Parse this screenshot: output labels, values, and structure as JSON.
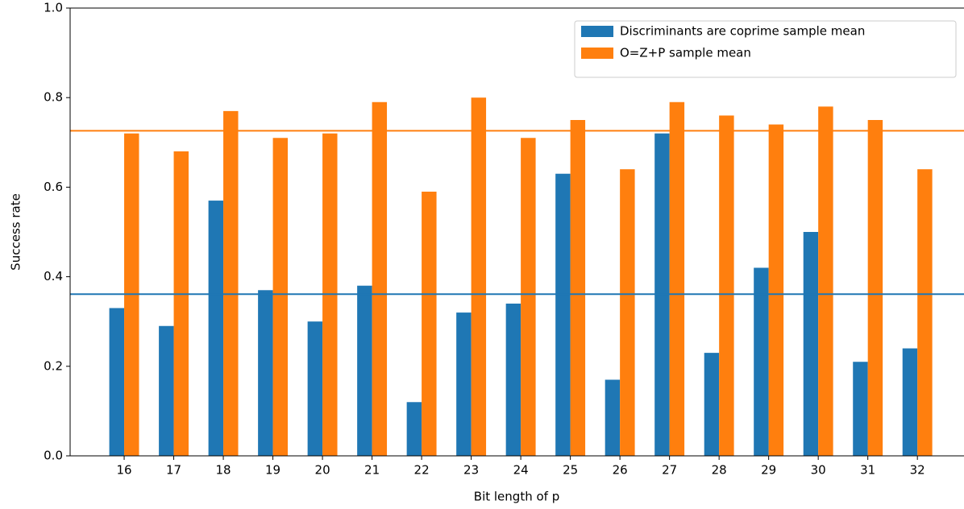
{
  "chart_data": {
    "type": "bar",
    "xlabel": "Bit length of p",
    "ylabel": "Success rate",
    "x": [
      16,
      17,
      18,
      19,
      20,
      21,
      22,
      23,
      24,
      25,
      26,
      27,
      28,
      29,
      30,
      31,
      32
    ],
    "series": [
      {
        "name": "Discriminants are coprime sample mean",
        "color": "#1f77b4",
        "values": [
          0.33,
          0.29,
          0.57,
          0.37,
          0.3,
          0.38,
          0.12,
          0.32,
          0.34,
          0.63,
          0.17,
          0.72,
          0.23,
          0.42,
          0.5,
          0.21,
          0.24
        ],
        "mean": 0.361
      },
      {
        "name": "O=Z+P sample mean",
        "color": "#ff7f0e",
        "values": [
          0.72,
          0.68,
          0.77,
          0.71,
          0.72,
          0.79,
          0.59,
          0.8,
          0.71,
          0.75,
          0.64,
          0.79,
          0.76,
          0.74,
          0.78,
          0.75,
          0.64
        ],
        "mean": 0.726
      }
    ],
    "xlim": [
      14.91,
      32.94
    ],
    "ylim": [
      0,
      1
    ],
    "xticks": [
      16,
      17,
      18,
      19,
      20,
      21,
      22,
      23,
      24,
      25,
      26,
      27,
      28,
      29,
      30,
      31,
      32
    ],
    "yticks": [
      {
        "value": 0,
        "label": "0.0"
      },
      0.2,
      0.4,
      0.6,
      0.8,
      {
        "value": 1,
        "label": "1.0"
      }
    ],
    "legend": "upper right"
  }
}
